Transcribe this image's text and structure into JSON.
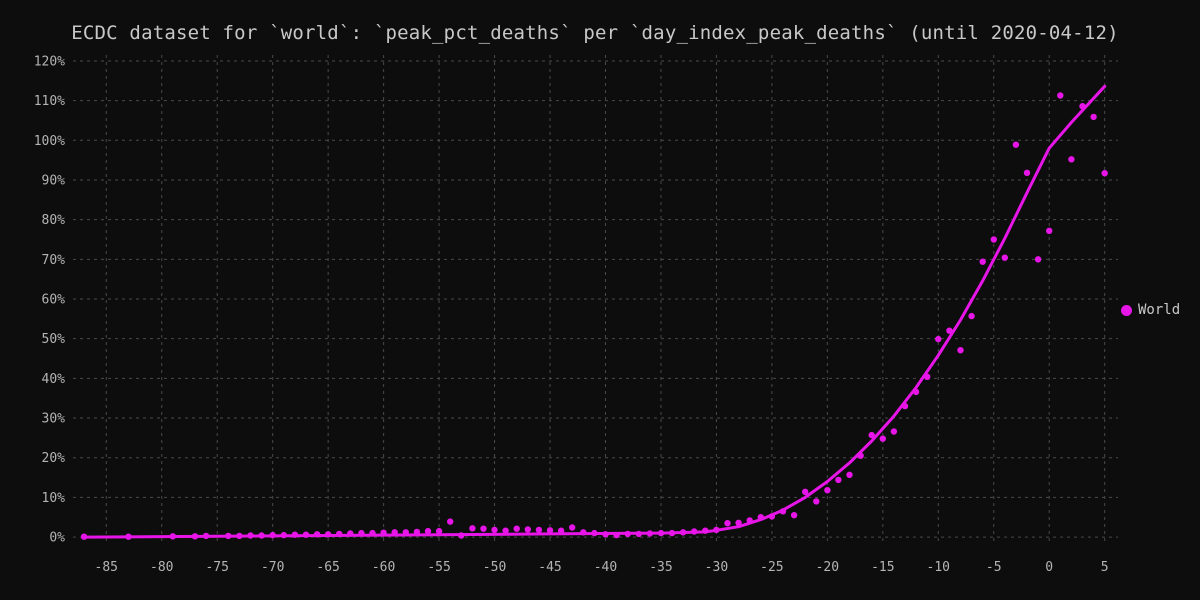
{
  "chart_data": {
    "type": "scatter",
    "title": "ECDC dataset for `world`: `peak_pct_deaths` per `day_index_peak_deaths` (until 2020-04-12)",
    "xlabel": "",
    "ylabel": "",
    "xlim": [
      -88,
      6.2
    ],
    "ylim": [
      -2,
      121.5
    ],
    "x_ticks": [
      -85,
      -80,
      -75,
      -70,
      -65,
      -60,
      -55,
      -50,
      -45,
      -40,
      -35,
      -30,
      -25,
      -20,
      -15,
      -10,
      -5,
      0,
      5
    ],
    "y_ticks": [
      0,
      10,
      20,
      30,
      40,
      50,
      60,
      70,
      80,
      90,
      100,
      110,
      120
    ],
    "y_tick_format": "percent",
    "grid": true,
    "legend_position": "right",
    "series": [
      {
        "name": "World",
        "color": "#e815e8",
        "points": [
          [
            -87,
            0.1
          ],
          [
            -83,
            0.1
          ],
          [
            -79,
            0.2
          ],
          [
            -77,
            0.2
          ],
          [
            -76,
            0.3
          ],
          [
            -74,
            0.3
          ],
          [
            -73,
            0.3
          ],
          [
            -72,
            0.4
          ],
          [
            -71,
            0.4
          ],
          [
            -70,
            0.5
          ],
          [
            -69,
            0.5
          ],
          [
            -68,
            0.6
          ],
          [
            -67,
            0.6
          ],
          [
            -66,
            0.7
          ],
          [
            -65,
            0.7
          ],
          [
            -64,
            0.8
          ],
          [
            -63,
            0.9
          ],
          [
            -62,
            1.0
          ],
          [
            -61,
            1.0
          ],
          [
            -60,
            1.1
          ],
          [
            -59,
            1.2
          ],
          [
            -58,
            1.2
          ],
          [
            -57,
            1.3
          ],
          [
            -56,
            1.5
          ],
          [
            -55,
            1.5
          ],
          [
            -54,
            3.9
          ],
          [
            -53,
            0.4
          ],
          [
            -52,
            2.2
          ],
          [
            -51,
            2.1
          ],
          [
            -50,
            1.8
          ],
          [
            -49,
            1.6
          ],
          [
            -48,
            2.1
          ],
          [
            -47,
            1.9
          ],
          [
            -46,
            1.8
          ],
          [
            -45,
            1.7
          ],
          [
            -44,
            1.6
          ],
          [
            -43,
            2.4
          ],
          [
            -42,
            1.2
          ],
          [
            -41,
            1.0
          ],
          [
            -40,
            0.7
          ],
          [
            -39,
            0.5
          ],
          [
            -38,
            0.8
          ],
          [
            -37,
            0.8
          ],
          [
            -36,
            0.9
          ],
          [
            -35,
            1.0
          ],
          [
            -34,
            1.0
          ],
          [
            -33,
            1.2
          ],
          [
            -32,
            1.4
          ],
          [
            -31,
            1.6
          ],
          [
            -30,
            1.8
          ],
          [
            -29,
            3.5
          ],
          [
            -28,
            3.6
          ],
          [
            -27,
            4.2
          ],
          [
            -26,
            5.0
          ],
          [
            -25,
            5.2
          ],
          [
            -24,
            6.5
          ],
          [
            -23,
            5.5
          ],
          [
            -22,
            11.4
          ],
          [
            -21,
            9.0
          ],
          [
            -20,
            11.8
          ],
          [
            -19,
            14.4
          ],
          [
            -18,
            15.7
          ],
          [
            -17,
            20.5
          ],
          [
            -16,
            25.7
          ],
          [
            -15,
            24.8
          ],
          [
            -14,
            26.6
          ],
          [
            -13,
            33.0
          ],
          [
            -12,
            36.6
          ],
          [
            -11,
            40.4
          ],
          [
            -10,
            49.9
          ],
          [
            -9,
            52.0
          ],
          [
            -8,
            47.1
          ],
          [
            -7,
            55.7
          ],
          [
            -6,
            69.4
          ],
          [
            -5,
            75.0
          ],
          [
            -4,
            70.4
          ],
          [
            -3,
            98.9
          ],
          [
            -2,
            91.8
          ],
          [
            -1,
            70.0
          ],
          [
            0,
            77.2
          ],
          [
            1,
            111.3
          ],
          [
            2,
            95.2
          ],
          [
            3,
            108.6
          ],
          [
            4,
            105.9
          ],
          [
            5,
            91.7
          ]
        ],
        "trend": [
          [
            -87,
            0.0
          ],
          [
            -75,
            0.2
          ],
          [
            -60,
            0.5
          ],
          [
            -45,
            0.8
          ],
          [
            -35,
            1.0
          ],
          [
            -31,
            1.3
          ],
          [
            -30,
            1.7
          ],
          [
            -28,
            2.6
          ],
          [
            -26,
            4.4
          ],
          [
            -24,
            6.8
          ],
          [
            -22,
            10.0
          ],
          [
            -20,
            14.0
          ],
          [
            -18,
            18.7
          ],
          [
            -16,
            24.2
          ],
          [
            -14,
            30.5
          ],
          [
            -12,
            37.7
          ],
          [
            -10,
            45.8
          ],
          [
            -8,
            54.7
          ],
          [
            -6,
            64.6
          ],
          [
            -4,
            75.3
          ],
          [
            -2,
            86.8
          ],
          [
            0,
            98.0
          ],
          [
            2,
            104.5
          ],
          [
            5,
            113.6
          ]
        ]
      }
    ]
  }
}
